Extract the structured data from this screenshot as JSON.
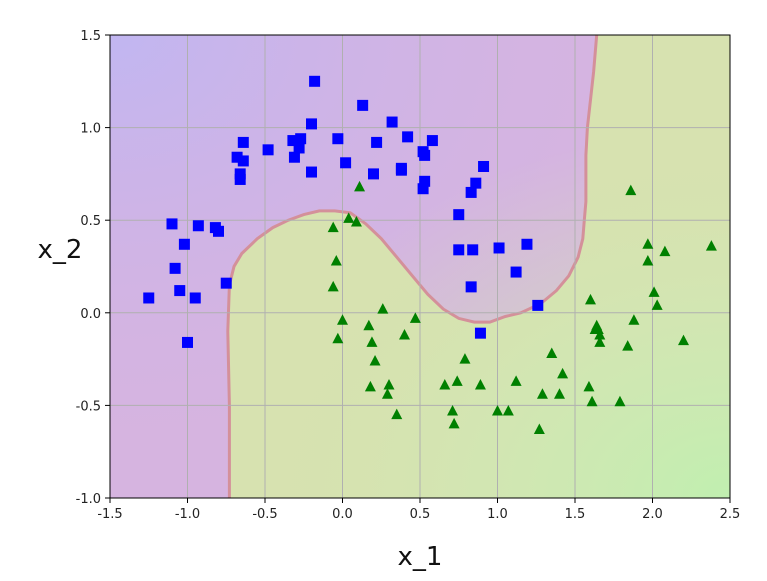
{
  "chart_data": {
    "type": "scatter",
    "xlabel": "x_1",
    "ylabel": "x_2",
    "xlim": [
      -1.5,
      2.5
    ],
    "ylim": [
      -1.0,
      1.5
    ],
    "xticks": [
      "-1.5",
      "-1.0",
      "-0.5",
      "0.0",
      "0.5",
      "1.0",
      "1.5",
      "2.0",
      "2.5"
    ],
    "yticks": [
      "-1.0",
      "-0.5",
      "0.0",
      "0.5",
      "1.0",
      "1.5"
    ],
    "grid": true,
    "background": "decision-regions",
    "colors": {
      "class0_marker": "#0000ff",
      "class1_marker": "#008000",
      "region0": "#d6b4e0",
      "region1": "#d7e2b0",
      "region0_dark": "#c3b3ee",
      "region1_light": "#c4ecb4",
      "boundary": "#d4909a"
    },
    "series": [
      {
        "marker": "square",
        "color": "#0000ff",
        "points": [
          [
            -1.25,
            0.08
          ],
          [
            -1.1,
            0.48
          ],
          [
            -1.08,
            0.24
          ],
          [
            -1.05,
            0.12
          ],
          [
            -1.02,
            0.37
          ],
          [
            -1.0,
            -0.16
          ],
          [
            -0.95,
            0.08
          ],
          [
            -0.93,
            0.47
          ],
          [
            -0.82,
            0.46
          ],
          [
            -0.8,
            0.44
          ],
          [
            -0.75,
            0.16
          ],
          [
            -0.68,
            0.84
          ],
          [
            -0.66,
            0.72
          ],
          [
            -0.66,
            0.75
          ],
          [
            -0.64,
            0.92
          ],
          [
            -0.64,
            0.82
          ],
          [
            -0.48,
            0.88
          ],
          [
            -0.32,
            0.93
          ],
          [
            -0.31,
            0.84
          ],
          [
            -0.28,
            0.89
          ],
          [
            -0.27,
            0.94
          ],
          [
            -0.2,
            1.02
          ],
          [
            -0.2,
            0.76
          ],
          [
            -0.18,
            1.25
          ],
          [
            -0.03,
            0.94
          ],
          [
            0.02,
            0.81
          ],
          [
            0.13,
            1.12
          ],
          [
            0.2,
            0.75
          ],
          [
            0.22,
            0.92
          ],
          [
            0.32,
            1.03
          ],
          [
            0.38,
            0.77
          ],
          [
            0.38,
            0.78
          ],
          [
            0.42,
            0.95
          ],
          [
            0.52,
            0.87
          ],
          [
            0.52,
            0.67
          ],
          [
            0.53,
            0.71
          ],
          [
            0.53,
            0.85
          ],
          [
            0.58,
            0.93
          ],
          [
            0.75,
            0.53
          ],
          [
            0.75,
            0.34
          ],
          [
            0.83,
            0.65
          ],
          [
            0.83,
            0.14
          ],
          [
            0.84,
            0.34
          ],
          [
            0.86,
            0.7
          ],
          [
            0.89,
            -0.11
          ],
          [
            0.91,
            0.79
          ],
          [
            1.01,
            0.35
          ],
          [
            1.12,
            0.22
          ],
          [
            1.19,
            0.37
          ],
          [
            1.26,
            0.04
          ]
        ]
      },
      {
        "marker": "triangle",
        "color": "#008000",
        "points": [
          [
            -0.06,
            0.46
          ],
          [
            -0.06,
            0.14
          ],
          [
            -0.04,
            0.28
          ],
          [
            -0.03,
            -0.14
          ],
          [
            0.0,
            -0.04
          ],
          [
            0.04,
            0.51
          ],
          [
            0.09,
            0.49
          ],
          [
            0.11,
            0.68
          ],
          [
            0.17,
            -0.07
          ],
          [
            0.18,
            -0.4
          ],
          [
            0.19,
            -0.16
          ],
          [
            0.21,
            -0.26
          ],
          [
            0.26,
            0.02
          ],
          [
            0.29,
            -0.44
          ],
          [
            0.3,
            -0.39
          ],
          [
            0.35,
            -0.55
          ],
          [
            0.4,
            -0.12
          ],
          [
            0.47,
            -0.03
          ],
          [
            0.66,
            -0.39
          ],
          [
            0.71,
            -0.53
          ],
          [
            0.72,
            -0.6
          ],
          [
            0.74,
            -0.37
          ],
          [
            0.79,
            -0.25
          ],
          [
            0.89,
            -0.39
          ],
          [
            1.0,
            -0.53
          ],
          [
            1.07,
            -0.53
          ],
          [
            1.12,
            -0.37
          ],
          [
            1.27,
            -0.63
          ],
          [
            1.29,
            -0.44
          ],
          [
            1.35,
            -0.22
          ],
          [
            1.4,
            -0.44
          ],
          [
            1.42,
            -0.33
          ],
          [
            1.59,
            -0.4
          ],
          [
            1.6,
            0.07
          ],
          [
            1.61,
            -0.48
          ],
          [
            1.63,
            -0.09
          ],
          [
            1.64,
            -0.07
          ],
          [
            1.65,
            -0.09
          ],
          [
            1.66,
            -0.12
          ],
          [
            1.66,
            -0.16
          ],
          [
            1.79,
            -0.48
          ],
          [
            1.84,
            -0.18
          ],
          [
            1.86,
            0.66
          ],
          [
            1.88,
            -0.04
          ],
          [
            1.97,
            0.37
          ],
          [
            1.97,
            0.28
          ],
          [
            2.01,
            0.11
          ],
          [
            2.03,
            0.04
          ],
          [
            2.08,
            0.33
          ],
          [
            2.2,
            -0.15
          ],
          [
            2.38,
            0.36
          ]
        ]
      }
    ]
  }
}
